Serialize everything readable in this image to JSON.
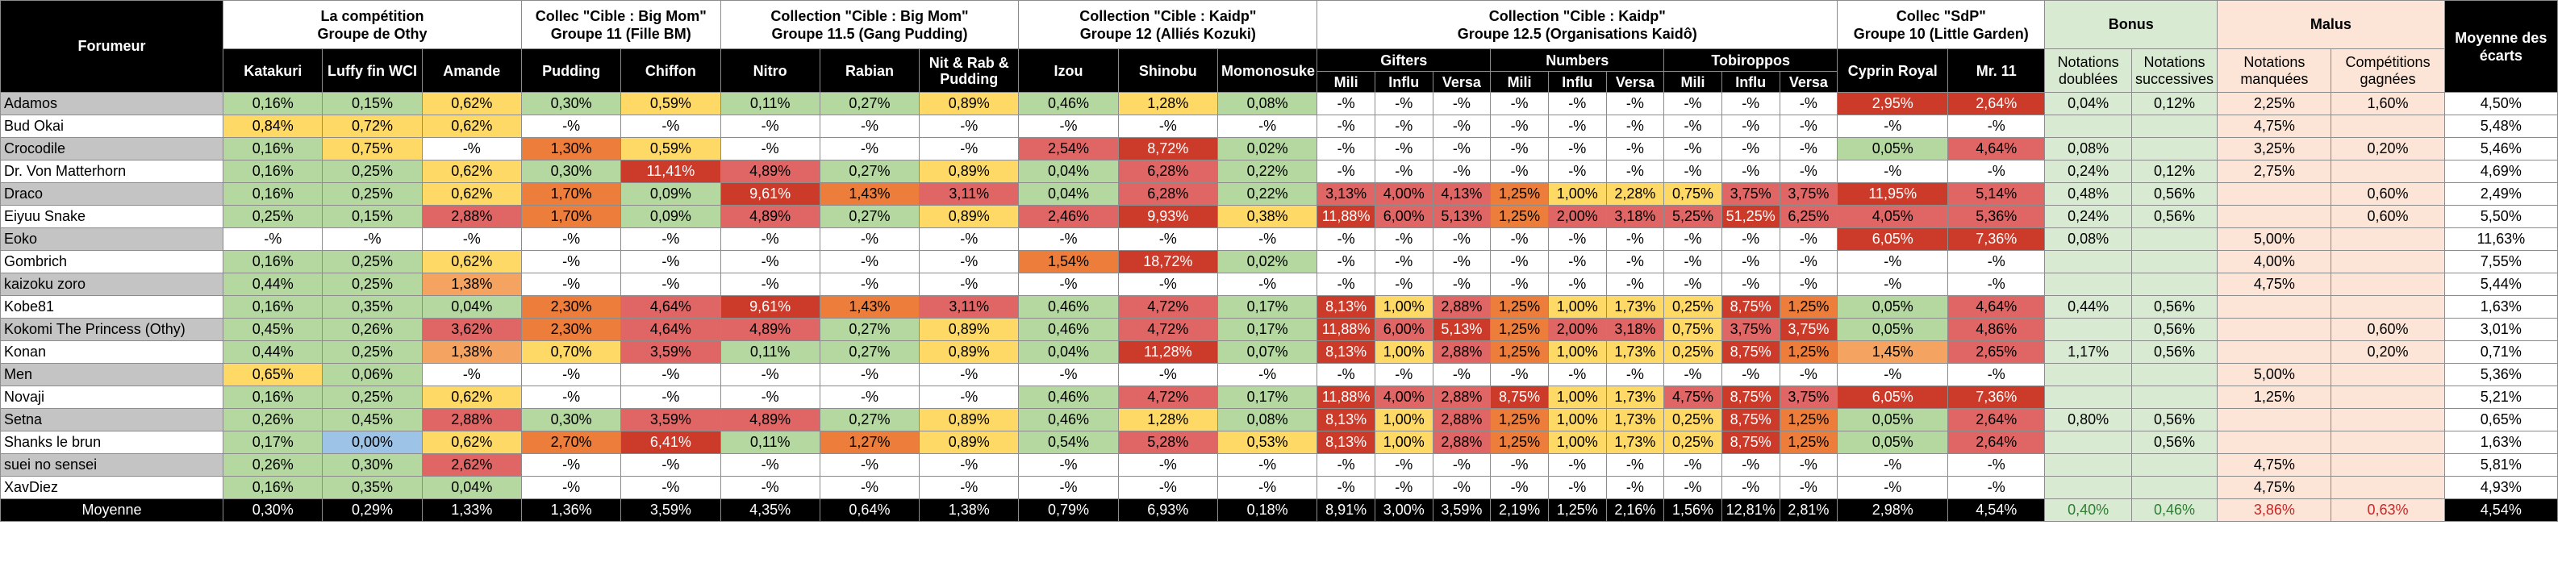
{
  "header": {
    "forumeur": "Forumeur",
    "moyenne_des_ecarts": "Moyenne des écarts",
    "groups": [
      {
        "line1": "La compétition",
        "line2": "Groupe de Othy"
      },
      {
        "line1": "Collec \"Cible : Big Mom\"",
        "line2": "Groupe 11 (Fille BM)"
      },
      {
        "line1": "Collection \"Cible : Big Mom\"",
        "line2": "Groupe 11.5 (Gang Pudding)"
      },
      {
        "line1": "Collection \"Cible : Kaidp\"",
        "line2": "Groupe 12 (Alliés Kozuki)"
      },
      {
        "line1": "Collection \"Cible : Kaidp\"",
        "line2": "Groupe 12.5 (Organisations Kaidô)"
      },
      {
        "line1": "Collec \"SdP\"",
        "line2": "Groupe 10 (Little Garden)"
      }
    ],
    "bonus": "Bonus",
    "malus": "Malus",
    "columns": [
      "Katakuri",
      "Luffy fin WCI",
      "Amande",
      "Pudding",
      "Chiffon",
      "Nitro",
      "Rabian",
      "Nit & Rab & Pudding",
      "Izou",
      "Shinobu",
      "Momonosuke",
      "Mili",
      "Influ",
      "Versa",
      "Mili",
      "Influ",
      "Versa",
      "Mili",
      "Influ",
      "Versa",
      "Cyprin Royal",
      "Mr. 11",
      "Notations doublées",
      "Notations successives",
      "Notations manquées",
      "Compétitions gagnées"
    ],
    "subgroups": [
      "Gifters",
      "Numbers",
      "Tobiroppos"
    ]
  },
  "rows": [
    {
      "name": "Adamos",
      "cells": [
        "0,16%",
        "0,15%",
        "0,62%",
        "0,30%",
        "0,59%",
        "0,11%",
        "0,27%",
        "0,89%",
        "0,46%",
        "1,28%",
        "0,08%",
        "-%",
        "-%",
        "-%",
        "-%",
        "-%",
        "-%",
        "-%",
        "-%",
        "-%",
        "2,95%",
        "2,64%",
        "0,04%",
        "0,12%",
        "2,25%",
        "1,60%"
      ],
      "avg": "4,50%"
    },
    {
      "name": "Bud Okai",
      "cells": [
        "0,84%",
        "0,72%",
        "0,62%",
        "-%",
        "-%",
        "-%",
        "-%",
        "-%",
        "-%",
        "-%",
        "-%",
        "-%",
        "-%",
        "-%",
        "-%",
        "-%",
        "-%",
        "-%",
        "-%",
        "-%",
        "-%",
        "-%",
        "",
        "",
        "4,75%",
        ""
      ],
      "avg": "5,48%"
    },
    {
      "name": "Crocodile",
      "cells": [
        "0,16%",
        "0,75%",
        "-%",
        "1,30%",
        "0,59%",
        "-%",
        "-%",
        "-%",
        "2,54%",
        "8,72%",
        "0,02%",
        "-%",
        "-%",
        "-%",
        "-%",
        "-%",
        "-%",
        "-%",
        "-%",
        "-%",
        "0,05%",
        "4,64%",
        "0,08%",
        "",
        "3,25%",
        "0,20%"
      ],
      "avg": "5,46%"
    },
    {
      "name": "Dr. Von Matterhorn",
      "cells": [
        "0,16%",
        "0,25%",
        "0,62%",
        "0,30%",
        "11,41%",
        "4,89%",
        "0,27%",
        "0,89%",
        "0,04%",
        "6,28%",
        "0,22%",
        "-%",
        "-%",
        "-%",
        "-%",
        "-%",
        "-%",
        "-%",
        "-%",
        "-%",
        "-%",
        "-%",
        "0,24%",
        "0,12%",
        "2,75%",
        ""
      ],
      "avg": "4,69%"
    },
    {
      "name": "Draco",
      "cells": [
        "0,16%",
        "0,25%",
        "0,62%",
        "1,70%",
        "0,09%",
        "9,61%",
        "1,43%",
        "3,11%",
        "0,04%",
        "6,28%",
        "0,22%",
        "3,13%",
        "4,00%",
        "4,13%",
        "1,25%",
        "1,00%",
        "2,28%",
        "0,75%",
        "3,75%",
        "3,75%",
        "11,95%",
        "5,14%",
        "0,48%",
        "0,56%",
        "",
        "0,60%"
      ],
      "avg": "2,49%"
    },
    {
      "name": "Eiyuu Snake",
      "cells": [
        "0,25%",
        "0,15%",
        "2,88%",
        "1,70%",
        "0,09%",
        "4,89%",
        "0,27%",
        "0,89%",
        "2,46%",
        "9,93%",
        "0,38%",
        "11,88%",
        "6,00%",
        "5,13%",
        "1,25%",
        "2,00%",
        "3,18%",
        "5,25%",
        "51,25%",
        "6,25%",
        "4,05%",
        "5,36%",
        "0,24%",
        "0,56%",
        "",
        "0,60%"
      ],
      "avg": "5,50%"
    },
    {
      "name": "Eoko",
      "cells": [
        "-%",
        "-%",
        "-%",
        "-%",
        "-%",
        "-%",
        "-%",
        "-%",
        "-%",
        "-%",
        "-%",
        "-%",
        "-%",
        "-%",
        "-%",
        "-%",
        "-%",
        "-%",
        "-%",
        "-%",
        "6,05%",
        "7,36%",
        "0,08%",
        "",
        "5,00%",
        ""
      ],
      "avg": "11,63%"
    },
    {
      "name": "Gombrich",
      "cells": [
        "0,16%",
        "0,25%",
        "0,62%",
        "-%",
        "-%",
        "-%",
        "-%",
        "-%",
        "1,54%",
        "18,72%",
        "0,02%",
        "-%",
        "-%",
        "-%",
        "-%",
        "-%",
        "-%",
        "-%",
        "-%",
        "-%",
        "-%",
        "-%",
        "",
        "",
        "4,00%",
        ""
      ],
      "avg": "7,55%"
    },
    {
      "name": "kaizoku zoro",
      "cells": [
        "0,44%",
        "0,25%",
        "1,38%",
        "-%",
        "-%",
        "-%",
        "-%",
        "-%",
        "-%",
        "-%",
        "-%",
        "-%",
        "-%",
        "-%",
        "-%",
        "-%",
        "-%",
        "-%",
        "-%",
        "-%",
        "-%",
        "-%",
        "",
        "",
        "4,75%",
        ""
      ],
      "avg": "5,44%"
    },
    {
      "name": "Kobe81",
      "cells": [
        "0,16%",
        "0,35%",
        "0,04%",
        "2,30%",
        "4,64%",
        "9,61%",
        "1,43%",
        "3,11%",
        "0,46%",
        "4,72%",
        "0,17%",
        "8,13%",
        "1,00%",
        "2,88%",
        "1,25%",
        "1,00%",
        "1,73%",
        "0,25%",
        "8,75%",
        "1,25%",
        "0,05%",
        "4,64%",
        "0,44%",
        "0,56%",
        "",
        ""
      ],
      "avg": "1,63%"
    },
    {
      "name": "Kokomi The Princess (Othy)",
      "cells": [
        "0,45%",
        "0,26%",
        "3,62%",
        "2,30%",
        "4,64%",
        "4,89%",
        "0,27%",
        "0,89%",
        "0,46%",
        "4,72%",
        "0,17%",
        "11,88%",
        "6,00%",
        "5,13%",
        "1,25%",
        "2,00%",
        "3,18%",
        "0,75%",
        "3,75%",
        "3,75%",
        "0,05%",
        "4,86%",
        "",
        "0,56%",
        "",
        "0,60%"
      ],
      "avg": "3,01%"
    },
    {
      "name": "Konan",
      "cells": [
        "0,44%",
        "0,25%",
        "1,38%",
        "0,70%",
        "3,59%",
        "0,11%",
        "0,27%",
        "0,89%",
        "0,04%",
        "11,28%",
        "0,07%",
        "8,13%",
        "1,00%",
        "2,88%",
        "1,25%",
        "1,00%",
        "1,73%",
        "0,25%",
        "8,75%",
        "1,25%",
        "1,45%",
        "2,65%",
        "1,17%",
        "0,56%",
        "",
        "0,20%"
      ],
      "avg": "0,71%"
    },
    {
      "name": "Men",
      "cells": [
        "0,65%",
        "0,06%",
        "-%",
        "-%",
        "-%",
        "-%",
        "-%",
        "-%",
        "-%",
        "-%",
        "-%",
        "-%",
        "-%",
        "-%",
        "-%",
        "-%",
        "-%",
        "-%",
        "-%",
        "-%",
        "-%",
        "-%",
        "",
        "",
        "5,00%",
        ""
      ],
      "avg": "5,36%"
    },
    {
      "name": "Novaji",
      "cells": [
        "0,16%",
        "0,25%",
        "0,62%",
        "-%",
        "-%",
        "-%",
        "-%",
        "-%",
        "0,46%",
        "4,72%",
        "0,17%",
        "11,88%",
        "4,00%",
        "2,88%",
        "8,75%",
        "1,00%",
        "1,73%",
        "4,75%",
        "8,75%",
        "3,75%",
        "6,05%",
        "7,36%",
        "",
        "",
        "1,25%",
        ""
      ],
      "avg": "5,21%"
    },
    {
      "name": "Setna",
      "cells": [
        "0,26%",
        "0,45%",
        "2,88%",
        "0,30%",
        "3,59%",
        "4,89%",
        "0,27%",
        "0,89%",
        "0,46%",
        "1,28%",
        "0,08%",
        "8,13%",
        "1,00%",
        "2,88%",
        "1,25%",
        "1,00%",
        "1,73%",
        "0,25%",
        "8,75%",
        "1,25%",
        "0,05%",
        "2,64%",
        "0,80%",
        "0,56%",
        "",
        ""
      ],
      "avg": "0,65%"
    },
    {
      "name": "Shanks le brun",
      "cells": [
        "0,17%",
        "0,00%",
        "0,62%",
        "2,70%",
        "6,41%",
        "0,11%",
        "1,27%",
        "0,89%",
        "0,54%",
        "5,28%",
        "0,53%",
        "8,13%",
        "1,00%",
        "2,88%",
        "1,25%",
        "1,00%",
        "1,73%",
        "0,25%",
        "8,75%",
        "1,25%",
        "0,05%",
        "2,64%",
        "",
        "0,56%",
        "",
        ""
      ],
      "avg": "1,63%"
    },
    {
      "name": "suei no sensei",
      "cells": [
        "0,26%",
        "0,30%",
        "2,62%",
        "-%",
        "-%",
        "-%",
        "-%",
        "-%",
        "-%",
        "-%",
        "-%",
        "-%",
        "-%",
        "-%",
        "-%",
        "-%",
        "-%",
        "-%",
        "-%",
        "-%",
        "-%",
        "-%",
        "",
        "",
        "4,75%",
        ""
      ],
      "avg": "5,81%"
    },
    {
      "name": "XavDiez",
      "cells": [
        "0,16%",
        "0,35%",
        "0,04%",
        "-%",
        "-%",
        "-%",
        "-%",
        "-%",
        "-%",
        "-%",
        "-%",
        "-%",
        "-%",
        "-%",
        "-%",
        "-%",
        "-%",
        "-%",
        "-%",
        "-%",
        "-%",
        "-%",
        "",
        "",
        "4,75%",
        ""
      ],
      "avg": "4,93%"
    }
  ],
  "footer": {
    "label": "Moyenne",
    "cells": [
      "0,30%",
      "0,29%",
      "1,33%",
      "1,36%",
      "3,59%",
      "4,35%",
      "0,64%",
      "1,38%",
      "0,79%",
      "6,93%",
      "0,18%",
      "8,91%",
      "3,00%",
      "3,59%",
      "2,19%",
      "1,25%",
      "2,16%",
      "1,56%",
      "12,81%",
      "2,81%",
      "2,98%",
      "4,54%",
      "0,40%",
      "0,46%",
      "3,86%",
      "0,63%"
    ],
    "avg": "4,54%"
  },
  "colors": {
    "green": "#b4d8a0",
    "yellow": "#ffd966",
    "orange": "#f4a460",
    "dark_orange": "#ed7d3a",
    "red": "#e06666",
    "dark_red": "#cc3a2a",
    "blue": "#9dc3e6",
    "bonus_bg": "#d9ead3",
    "malus_bg": "#fce4d6",
    "header_bg": "#000000"
  },
  "cell_colors": [
    [
      "g",
      "g",
      "y",
      "g",
      "y",
      "g",
      "g",
      "y",
      "g",
      "y",
      "g",
      "",
      "",
      "",
      "",
      "",
      "",
      "",
      "",
      "",
      "dr",
      "dr",
      "bon",
      "bon",
      "mal",
      "mal"
    ],
    [
      "y",
      "y",
      "y",
      "",
      "",
      "",
      "",
      "",
      "",
      "",
      "",
      "",
      "",
      "",
      "",
      "",
      "",
      "",
      "",
      "",
      "",
      "",
      "bon",
      "bon",
      "mal",
      "mal"
    ],
    [
      "g",
      "y",
      "",
      "or",
      "y",
      "",
      "",
      "",
      "r",
      "dr",
      "g",
      "",
      "",
      "",
      "",
      "",
      "",
      "",
      "",
      "",
      "g",
      "r",
      "bon",
      "bon",
      "mal",
      "mal"
    ],
    [
      "g",
      "g",
      "y",
      "g",
      "dr",
      "r",
      "g",
      "y",
      "g",
      "r",
      "g",
      "",
      "",
      "",
      "",
      "",
      "",
      "",
      "",
      "",
      "",
      "",
      "bon",
      "bon",
      "mal",
      "mal"
    ],
    [
      "g",
      "g",
      "y",
      "or",
      "g",
      "dr",
      "or",
      "r",
      "g",
      "r",
      "g",
      "r",
      "r",
      "r",
      "or",
      "y",
      "y",
      "y",
      "r",
      "r",
      "dr",
      "r",
      "bon",
      "bon",
      "mal",
      "mal"
    ],
    [
      "g",
      "g",
      "r",
      "or",
      "g",
      "r",
      "g",
      "y",
      "r",
      "dr",
      "y",
      "dr",
      "r",
      "r",
      "or",
      "r",
      "r",
      "r",
      "dr",
      "r",
      "r",
      "r",
      "bon",
      "bon",
      "mal",
      "mal"
    ],
    [
      "",
      "",
      "",
      "",
      "",
      "",
      "",
      "",
      "",
      "",
      "",
      "",
      "",
      "",
      "",
      "",
      "",
      "",
      "",
      "",
      "dr",
      "dr",
      "bon",
      "bon",
      "mal",
      "mal"
    ],
    [
      "g",
      "g",
      "y",
      "",
      "",
      "",
      "",
      "",
      "or",
      "dr",
      "g",
      "",
      "",
      "",
      "",
      "",
      "",
      "",
      "",
      "",
      "",
      "",
      "bon",
      "bon",
      "mal",
      "mal"
    ],
    [
      "g",
      "g",
      "o",
      "",
      "",
      "",
      "",
      "",
      "",
      "",
      "",
      "",
      "",
      "",
      "",
      "",
      "",
      "",
      "",
      "",
      "",
      "",
      "bon",
      "bon",
      "mal",
      "mal"
    ],
    [
      "g",
      "g",
      "g",
      "or",
      "r",
      "dr",
      "or",
      "r",
      "g",
      "r",
      "g",
      "dr",
      "y",
      "r",
      "or",
      "y",
      "y",
      "y",
      "dr",
      "or",
      "g",
      "r",
      "bon",
      "bon",
      "mal",
      "mal"
    ],
    [
      "g",
      "g",
      "r",
      "or",
      "r",
      "r",
      "g",
      "y",
      "g",
      "r",
      "g",
      "dr",
      "r",
      "dr",
      "or",
      "r",
      "r",
      "y",
      "r",
      "dr",
      "g",
      "r",
      "bon",
      "bon",
      "mal",
      "mal"
    ],
    [
      "g",
      "g",
      "o",
      "y",
      "r",
      "g",
      "g",
      "y",
      "g",
      "dr",
      "g",
      "dr",
      "y",
      "r",
      "or",
      "y",
      "y",
      "y",
      "dr",
      "or",
      "o",
      "r",
      "bon",
      "bon",
      "mal",
      "mal"
    ],
    [
      "y",
      "g",
      "",
      "",
      "",
      "",
      "",
      "",
      "",
      "",
      "",
      "",
      "",
      "",
      "",
      "",
      "",
      "",
      "",
      "",
      "",
      "",
      "bon",
      "bon",
      "mal",
      "mal"
    ],
    [
      "g",
      "g",
      "y",
      "",
      "",
      "",
      "",
      "",
      "g",
      "r",
      "g",
      "dr",
      "r",
      "r",
      "dr",
      "y",
      "y",
      "r",
      "dr",
      "r",
      "dr",
      "dr",
      "bon",
      "bon",
      "mal",
      "mal"
    ],
    [
      "g",
      "g",
      "r",
      "g",
      "r",
      "r",
      "g",
      "y",
      "g",
      "y",
      "g",
      "dr",
      "y",
      "r",
      "or",
      "y",
      "y",
      "y",
      "dr",
      "or",
      "g",
      "r",
      "bon",
      "bon",
      "mal",
      "mal"
    ],
    [
      "g",
      "b",
      "y",
      "or",
      "dr",
      "g",
      "or",
      "y",
      "g",
      "r",
      "y",
      "dr",
      "y",
      "r",
      "or",
      "y",
      "y",
      "y",
      "dr",
      "or",
      "g",
      "r",
      "bon",
      "bon",
      "mal",
      "mal"
    ],
    [
      "g",
      "g",
      "r",
      "",
      "",
      "",
      "",
      "",
      "",
      "",
      "",
      "",
      "",
      "",
      "",
      "",
      "",
      "",
      "",
      "",
      "",
      "",
      "bon",
      "bon",
      "mal",
      "mal"
    ],
    [
      "g",
      "g",
      "g",
      "",
      "",
      "",
      "",
      "",
      "",
      "",
      "",
      "",
      "",
      "",
      "",
      "",
      "",
      "",
      "",
      "",
      "",
      "",
      "bon",
      "bon",
      "mal",
      "mal"
    ]
  ]
}
